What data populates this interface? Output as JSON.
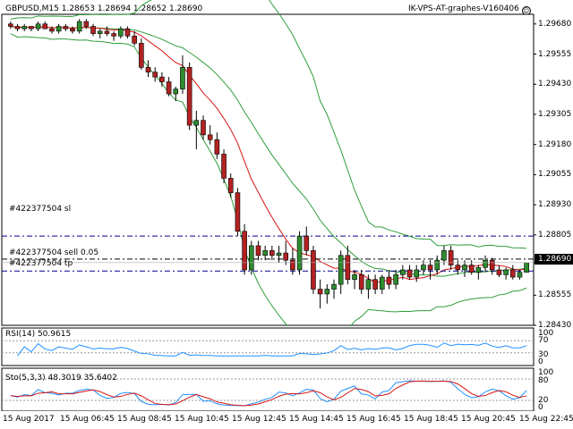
{
  "header": {
    "symbol_info": "GBPUSD,M15  1.28653 1.28694 1.28652 1.28690",
    "ea_label": "IK-VPS-AT-graphes-V160406",
    "smiley_icon": "smiley-icon"
  },
  "main_axis": {
    "ticks": [
      "1.29680",
      "1.29555",
      "1.29430",
      "1.29305",
      "1.29180",
      "1.29055",
      "1.28930",
      "1.28805",
      "1.28690",
      "1.28555",
      "1.28430"
    ],
    "current_price": "1.28690"
  },
  "order_lines": {
    "sl_label": "#422377504 sl",
    "sell_label": "#422377504 sell 0.05",
    "tp_label": "#422377504 tp"
  },
  "rsi": {
    "label": "RSI(14) 50.9615",
    "ticks": [
      "100",
      "70",
      "30",
      "0"
    ]
  },
  "stoch": {
    "label": "Sto(5,3,3) 48.3019 35.6402",
    "ticks": [
      "100",
      "80",
      "20",
      "0"
    ]
  },
  "time_axis": [
    "15 Aug 2017",
    "15 Aug 06:45",
    "15 Aug 08:45",
    "15 Aug 10:45",
    "15 Aug 12:45",
    "15 Aug 14:45",
    "15 Aug 16:45",
    "15 Aug 18:45",
    "15 Aug 20:45",
    "15 Aug 22:45"
  ],
  "colors": {
    "bull": "#2e8b2e",
    "bear": "#b22222",
    "band": "#2e9e3a",
    "ma": "#d91414",
    "order": "#00008b",
    "stoch_main": "#1e90ff",
    "stoch_signal": "#d91414",
    "rsi_line": "#1e90ff"
  },
  "chart_data": {
    "type": "candlestick",
    "candles": [
      [
        1.2968,
        1.2969,
        1.2966,
        1.2967
      ],
      [
        1.2967,
        1.2968,
        1.2965,
        1.2966
      ],
      [
        1.2966,
        1.2968,
        1.2965,
        1.2967
      ],
      [
        1.2967,
        1.2967,
        1.2965,
        1.2966
      ],
      [
        1.2966,
        1.2969,
        1.2965,
        1.2968
      ],
      [
        1.2968,
        1.2969,
        1.2966,
        1.2966
      ],
      [
        1.2966,
        1.2967,
        1.2964,
        1.2965
      ],
      [
        1.2965,
        1.2968,
        1.2964,
        1.2967
      ],
      [
        1.2967,
        1.2968,
        1.2965,
        1.2966
      ],
      [
        1.2966,
        1.2967,
        1.2964,
        1.2965
      ],
      [
        1.2965,
        1.297,
        1.2964,
        1.2969
      ],
      [
        1.2969,
        1.297,
        1.2966,
        1.2967
      ],
      [
        1.2967,
        1.2968,
        1.2963,
        1.2964
      ],
      [
        1.2964,
        1.2966,
        1.2962,
        1.2965
      ],
      [
        1.2965,
        1.2967,
        1.2963,
        1.2964
      ],
      [
        1.2964,
        1.2965,
        1.2961,
        1.2963
      ],
      [
        1.2963,
        1.2967,
        1.2962,
        1.2966
      ],
      [
        1.2966,
        1.2967,
        1.2962,
        1.2963
      ],
      [
        1.2963,
        1.2965,
        1.2959,
        1.296
      ],
      [
        1.296,
        1.2962,
        1.2949,
        1.295
      ],
      [
        1.295,
        1.2953,
        1.2946,
        1.2948
      ],
      [
        1.2948,
        1.295,
        1.2944,
        1.2946
      ],
      [
        1.2946,
        1.2948,
        1.2942,
        1.2944
      ],
      [
        1.2944,
        1.2946,
        1.2938,
        1.2939
      ],
      [
        1.2939,
        1.2942,
        1.2936,
        1.2941
      ],
      [
        1.2941,
        1.2955,
        1.2939,
        1.295
      ],
      [
        1.295,
        1.2952,
        1.2924,
        1.2926
      ],
      [
        1.2926,
        1.2932,
        1.2916,
        1.2928
      ],
      [
        1.2928,
        1.293,
        1.292,
        1.2922
      ],
      [
        1.2922,
        1.2926,
        1.2918,
        1.292
      ],
      [
        1.292,
        1.2923,
        1.2912,
        1.2914
      ],
      [
        1.2914,
        1.2916,
        1.2902,
        1.2904
      ],
      [
        1.2904,
        1.2906,
        1.2896,
        1.2898
      ],
      [
        1.2898,
        1.29,
        1.288,
        1.2882
      ],
      [
        1.2882,
        1.2885,
        1.2864,
        1.2866
      ],
      [
        1.2866,
        1.2878,
        1.2864,
        1.2876
      ],
      [
        1.2876,
        1.2878,
        1.287,
        1.2872
      ],
      [
        1.2872,
        1.2876,
        1.287,
        1.2874
      ],
      [
        1.2874,
        1.2876,
        1.287,
        1.2872
      ],
      [
        1.2872,
        1.2876,
        1.2869,
        1.2873
      ],
      [
        1.2873,
        1.2878,
        1.2868,
        1.287
      ],
      [
        1.287,
        1.2875,
        1.2864,
        1.2866
      ],
      [
        1.2866,
        1.2882,
        1.2864,
        1.288
      ],
      [
        1.288,
        1.2884,
        1.2872,
        1.2874
      ],
      [
        1.2874,
        1.2876,
        1.2856,
        1.2858
      ],
      [
        1.2858,
        1.2862,
        1.285,
        1.2856
      ],
      [
        1.2856,
        1.286,
        1.2852,
        1.2858
      ],
      [
        1.2858,
        1.2862,
        1.2854,
        1.286
      ],
      [
        1.286,
        1.2874,
        1.2856,
        1.2872
      ],
      [
        1.2872,
        1.2876,
        1.286,
        1.2862
      ],
      [
        1.2862,
        1.2866,
        1.2858,
        1.2864
      ],
      [
        1.2864,
        1.2866,
        1.2856,
        1.2858
      ],
      [
        1.2858,
        1.2864,
        1.2854,
        1.2862
      ],
      [
        1.2862,
        1.2864,
        1.2856,
        1.2858
      ],
      [
        1.2858,
        1.2864,
        1.2856,
        1.2863
      ],
      [
        1.2863,
        1.2866,
        1.2858,
        1.286
      ],
      [
        1.286,
        1.2866,
        1.2858,
        1.2864
      ],
      [
        1.2864,
        1.2868,
        1.2862,
        1.2866
      ],
      [
        1.2866,
        1.2868,
        1.2862,
        1.2863
      ],
      [
        1.2863,
        1.2868,
        1.2861,
        1.2866
      ],
      [
        1.2866,
        1.287,
        1.2864,
        1.2868
      ],
      [
        1.2868,
        1.287,
        1.2862,
        1.2866
      ],
      [
        1.2866,
        1.2872,
        1.2864,
        1.287
      ],
      [
        1.287,
        1.2876,
        1.2868,
        1.2874
      ],
      [
        1.2874,
        1.2876,
        1.2866,
        1.2868
      ],
      [
        1.2868,
        1.287,
        1.2864,
        1.2866
      ],
      [
        1.2866,
        1.287,
        1.2863,
        1.2868
      ],
      [
        1.2868,
        1.287,
        1.2864,
        1.2865
      ],
      [
        1.2865,
        1.2868,
        1.2862,
        1.2867
      ],
      [
        1.2867,
        1.2872,
        1.2865,
        1.287
      ],
      [
        1.287,
        1.2871,
        1.2864,
        1.2866
      ],
      [
        1.2866,
        1.2868,
        1.2863,
        1.2864
      ],
      [
        1.2864,
        1.2867,
        1.2862,
        1.2866
      ],
      [
        1.2866,
        1.2868,
        1.2862,
        1.2863
      ],
      [
        1.2863,
        1.2866,
        1.2862,
        1.2865
      ],
      [
        1.2865,
        1.2869,
        1.2865,
        1.2869
      ]
    ],
    "ylim": [
      1.2843,
      1.2972
    ],
    "order_levels": {
      "sl": 1.288,
      "sell": 1.28705,
      "tp": 1.28655
    },
    "bid": 1.2869
  }
}
